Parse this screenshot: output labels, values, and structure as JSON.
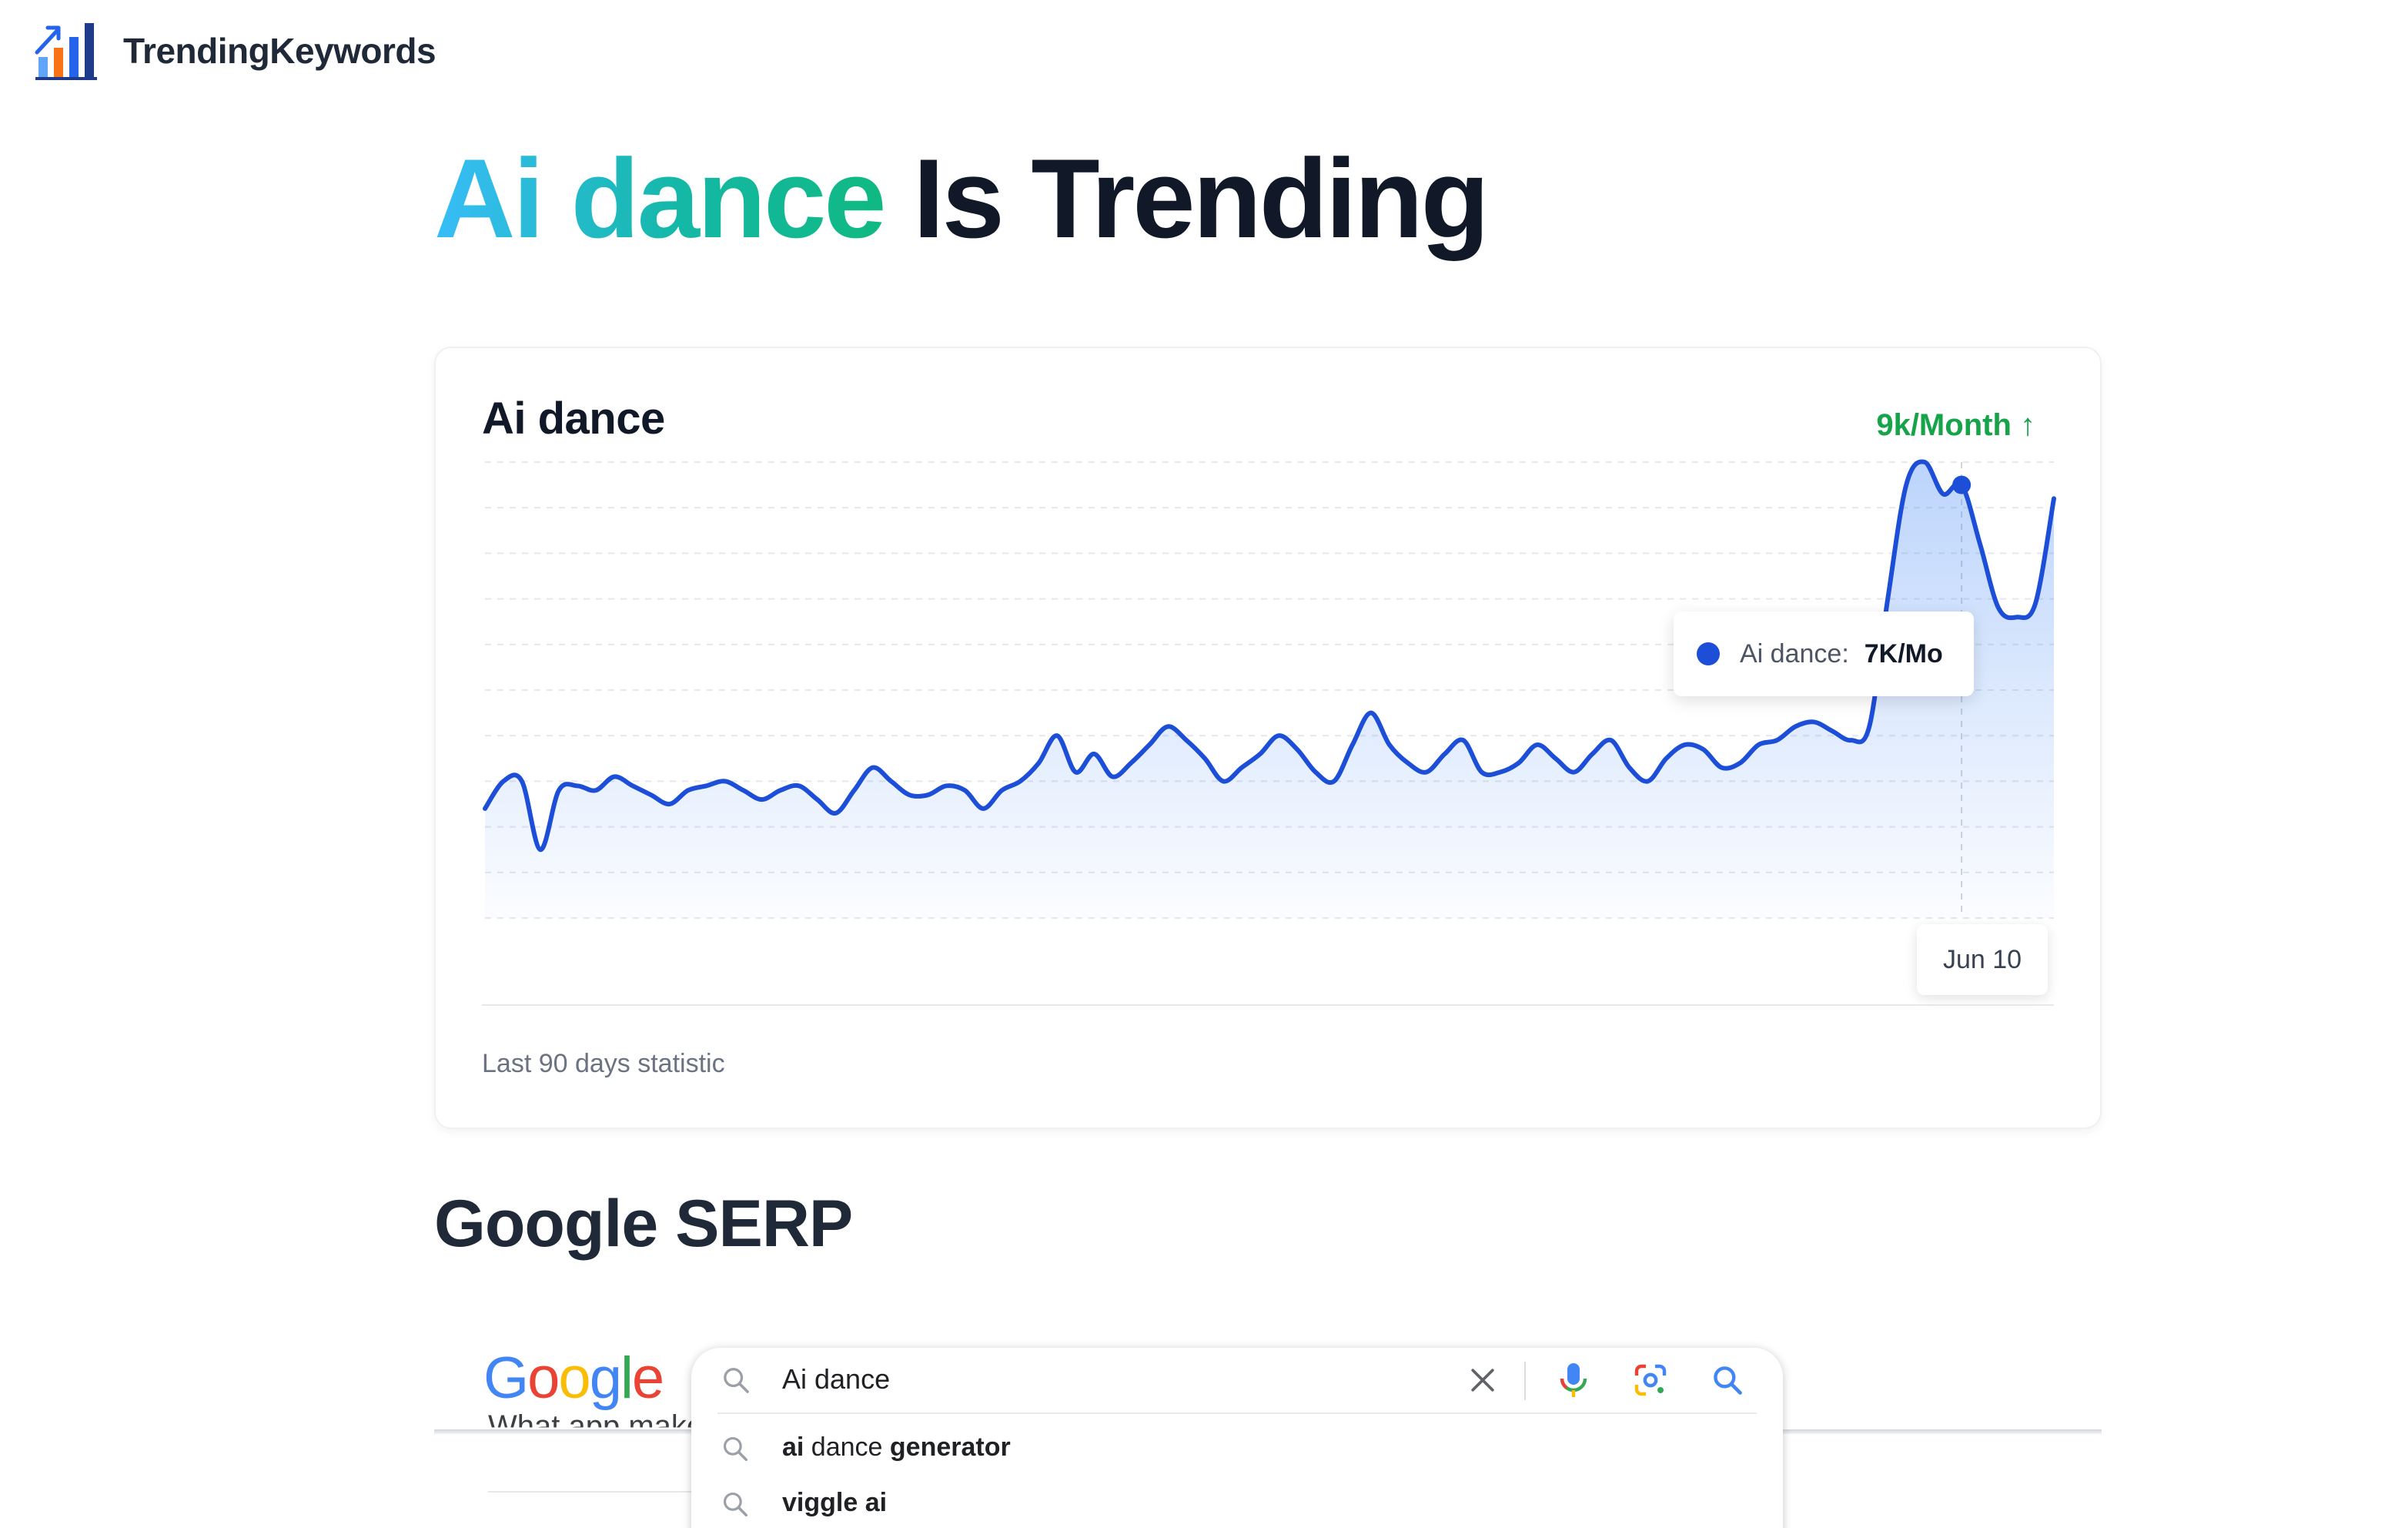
{
  "brand": {
    "name": "TrendingKeywords"
  },
  "hero": {
    "keyword": "Ai dance",
    "suffix": "Is Trending"
  },
  "card": {
    "title": "Ai dance",
    "trend_label": "9k/Month ↑",
    "footer": "Last 90 days statistic",
    "tooltip": {
      "series": "Ai dance:",
      "value": "7K/Mo"
    },
    "date_label": "Jun 10"
  },
  "chart_data": {
    "type": "area",
    "title": "Ai dance",
    "series": [
      {
        "name": "Ai dance",
        "color": "#1d4ed8",
        "values": [
          2.4,
          3.0,
          3.0,
          1.5,
          2.8,
          2.9,
          2.8,
          3.1,
          2.9,
          2.7,
          2.5,
          2.8,
          2.9,
          3.0,
          2.8,
          2.6,
          2.8,
          2.9,
          2.6,
          2.3,
          2.8,
          3.3,
          3.0,
          2.7,
          2.7,
          2.9,
          2.8,
          2.4,
          2.8,
          3.0,
          3.4,
          4.0,
          3.2,
          3.6,
          3.1,
          3.4,
          3.8,
          4.2,
          3.9,
          3.5,
          3.0,
          3.3,
          3.6,
          4.0,
          3.7,
          3.2,
          3.0,
          3.8,
          4.5,
          3.8,
          3.4,
          3.2,
          3.6,
          3.9,
          3.2,
          3.2,
          3.4,
          3.8,
          3.5,
          3.2,
          3.6,
          3.9,
          3.3,
          3.0,
          3.5,
          3.8,
          3.7,
          3.3,
          3.4,
          3.8,
          3.9,
          4.2,
          4.3,
          4.1,
          3.9,
          4.2,
          7.0,
          9.5,
          10.0,
          9.3,
          9.5,
          8.2,
          6.8,
          6.6,
          6.9,
          9.2
        ]
      }
    ],
    "x_label_visible": "Jun 10",
    "y_gridlines": 10,
    "grid": true,
    "legend": "none",
    "ylim": [
      0,
      10
    ],
    "unit": "K/Mo"
  },
  "serp": {
    "section_title": "Google SERP",
    "logo_letters": [
      "G",
      "o",
      "o",
      "g",
      "l",
      "e"
    ],
    "query": "Ai dance",
    "background_result": "What app make",
    "suggestions": [
      {
        "bold_prefix": "ai",
        "rest": " dance ",
        "bold_suffix": "generator"
      },
      {
        "bold_prefix": "viggle ai",
        "rest": "",
        "bold_suffix": ""
      }
    ]
  }
}
